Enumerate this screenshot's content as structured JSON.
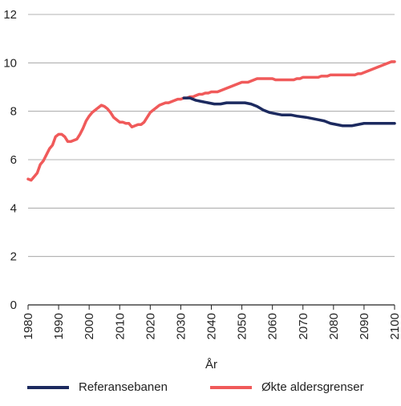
{
  "chart_data": {
    "type": "line",
    "title": "",
    "xlabel": "År",
    "ylabel": "",
    "xlim": [
      1980,
      2100
    ],
    "ylim": [
      0,
      12
    ],
    "x_ticks": [
      "1980",
      "1990",
      "2000",
      "2010",
      "2020",
      "2030",
      "2040",
      "2050",
      "2060",
      "2070",
      "2080",
      "2090",
      "2100"
    ],
    "y_ticks": [
      "0",
      "2",
      "4",
      "6",
      "8",
      "10",
      "12"
    ],
    "grid": "horizontal",
    "legend_position": "bottom",
    "series": [
      {
        "name": "Referansebanen",
        "color": "#1c2a5f",
        "points": [
          [
            2031,
            8.55
          ],
          [
            2033,
            8.55
          ],
          [
            2035,
            8.45
          ],
          [
            2037,
            8.4
          ],
          [
            2039,
            8.35
          ],
          [
            2041,
            8.3
          ],
          [
            2043,
            8.3
          ],
          [
            2045,
            8.35
          ],
          [
            2048,
            8.35
          ],
          [
            2051,
            8.35
          ],
          [
            2053,
            8.3
          ],
          [
            2055,
            8.2
          ],
          [
            2057,
            8.05
          ],
          [
            2059,
            7.95
          ],
          [
            2061,
            7.9
          ],
          [
            2063,
            7.85
          ],
          [
            2066,
            7.85
          ],
          [
            2068,
            7.8
          ],
          [
            2071,
            7.75
          ],
          [
            2073,
            7.7
          ],
          [
            2075,
            7.65
          ],
          [
            2077,
            7.6
          ],
          [
            2079,
            7.5
          ],
          [
            2081,
            7.45
          ],
          [
            2083,
            7.4
          ],
          [
            2086,
            7.4
          ],
          [
            2088,
            7.45
          ],
          [
            2090,
            7.5
          ],
          [
            2093,
            7.5
          ],
          [
            2096,
            7.5
          ],
          [
            2100,
            7.5
          ]
        ]
      },
      {
        "name": "Økte aldersgrenser",
        "color": "#f05a5a",
        "points": [
          [
            1980,
            5.2
          ],
          [
            1981,
            5.15
          ],
          [
            1982,
            5.3
          ],
          [
            1983,
            5.45
          ],
          [
            1984,
            5.8
          ],
          [
            1985,
            5.95
          ],
          [
            1986,
            6.2
          ],
          [
            1987,
            6.45
          ],
          [
            1988,
            6.6
          ],
          [
            1989,
            6.95
          ],
          [
            1990,
            7.05
          ],
          [
            1991,
            7.05
          ],
          [
            1992,
            6.95
          ],
          [
            1993,
            6.75
          ],
          [
            1994,
            6.75
          ],
          [
            1995,
            6.8
          ],
          [
            1996,
            6.85
          ],
          [
            1997,
            7.05
          ],
          [
            1998,
            7.3
          ],
          [
            1999,
            7.6
          ],
          [
            2000,
            7.8
          ],
          [
            2001,
            7.95
          ],
          [
            2002,
            8.05
          ],
          [
            2003,
            8.15
          ],
          [
            2004,
            8.25
          ],
          [
            2005,
            8.2
          ],
          [
            2006,
            8.1
          ],
          [
            2007,
            7.95
          ],
          [
            2008,
            7.75
          ],
          [
            2009,
            7.65
          ],
          [
            2010,
            7.55
          ],
          [
            2011,
            7.55
          ],
          [
            2012,
            7.5
          ],
          [
            2013,
            7.5
          ],
          [
            2014,
            7.35
          ],
          [
            2015,
            7.4
          ],
          [
            2016,
            7.45
          ],
          [
            2017,
            7.45
          ],
          [
            2018,
            7.55
          ],
          [
            2019,
            7.75
          ],
          [
            2020,
            7.95
          ],
          [
            2021,
            8.05
          ],
          [
            2022,
            8.15
          ],
          [
            2023,
            8.25
          ],
          [
            2024,
            8.3
          ],
          [
            2025,
            8.35
          ],
          [
            2026,
            8.35
          ],
          [
            2027,
            8.4
          ],
          [
            2028,
            8.45
          ],
          [
            2029,
            8.5
          ],
          [
            2030,
            8.5
          ],
          [
            2031,
            8.55
          ],
          [
            2032,
            8.55
          ],
          [
            2033,
            8.6
          ],
          [
            2034,
            8.6
          ],
          [
            2035,
            8.65
          ],
          [
            2036,
            8.7
          ],
          [
            2037,
            8.7
          ],
          [
            2038,
            8.75
          ],
          [
            2039,
            8.75
          ],
          [
            2040,
            8.8
          ],
          [
            2041,
            8.8
          ],
          [
            2042,
            8.8
          ],
          [
            2043,
            8.85
          ],
          [
            2044,
            8.9
          ],
          [
            2045,
            8.95
          ],
          [
            2046,
            9.0
          ],
          [
            2047,
            9.05
          ],
          [
            2048,
            9.1
          ],
          [
            2049,
            9.15
          ],
          [
            2050,
            9.2
          ],
          [
            2051,
            9.2
          ],
          [
            2052,
            9.2
          ],
          [
            2053,
            9.25
          ],
          [
            2054,
            9.3
          ],
          [
            2055,
            9.35
          ],
          [
            2056,
            9.35
          ],
          [
            2057,
            9.35
          ],
          [
            2058,
            9.35
          ],
          [
            2059,
            9.35
          ],
          [
            2060,
            9.35
          ],
          [
            2061,
            9.3
          ],
          [
            2062,
            9.3
          ],
          [
            2063,
            9.3
          ],
          [
            2064,
            9.3
          ],
          [
            2065,
            9.3
          ],
          [
            2066,
            9.3
          ],
          [
            2067,
            9.3
          ],
          [
            2068,
            9.35
          ],
          [
            2069,
            9.35
          ],
          [
            2070,
            9.4
          ],
          [
            2071,
            9.4
          ],
          [
            2072,
            9.4
          ],
          [
            2073,
            9.4
          ],
          [
            2074,
            9.4
          ],
          [
            2075,
            9.4
          ],
          [
            2076,
            9.45
          ],
          [
            2077,
            9.45
          ],
          [
            2078,
            9.45
          ],
          [
            2079,
            9.5
          ],
          [
            2080,
            9.5
          ],
          [
            2081,
            9.5
          ],
          [
            2082,
            9.5
          ],
          [
            2083,
            9.5
          ],
          [
            2084,
            9.5
          ],
          [
            2085,
            9.5
          ],
          [
            2086,
            9.5
          ],
          [
            2087,
            9.5
          ],
          [
            2088,
            9.55
          ],
          [
            2089,
            9.55
          ],
          [
            2090,
            9.6
          ],
          [
            2091,
            9.65
          ],
          [
            2092,
            9.7
          ],
          [
            2093,
            9.75
          ],
          [
            2094,
            9.8
          ],
          [
            2095,
            9.85
          ],
          [
            2096,
            9.9
          ],
          [
            2097,
            9.95
          ],
          [
            2098,
            10.0
          ],
          [
            2099,
            10.05
          ],
          [
            2100,
            10.05
          ]
        ]
      }
    ]
  }
}
